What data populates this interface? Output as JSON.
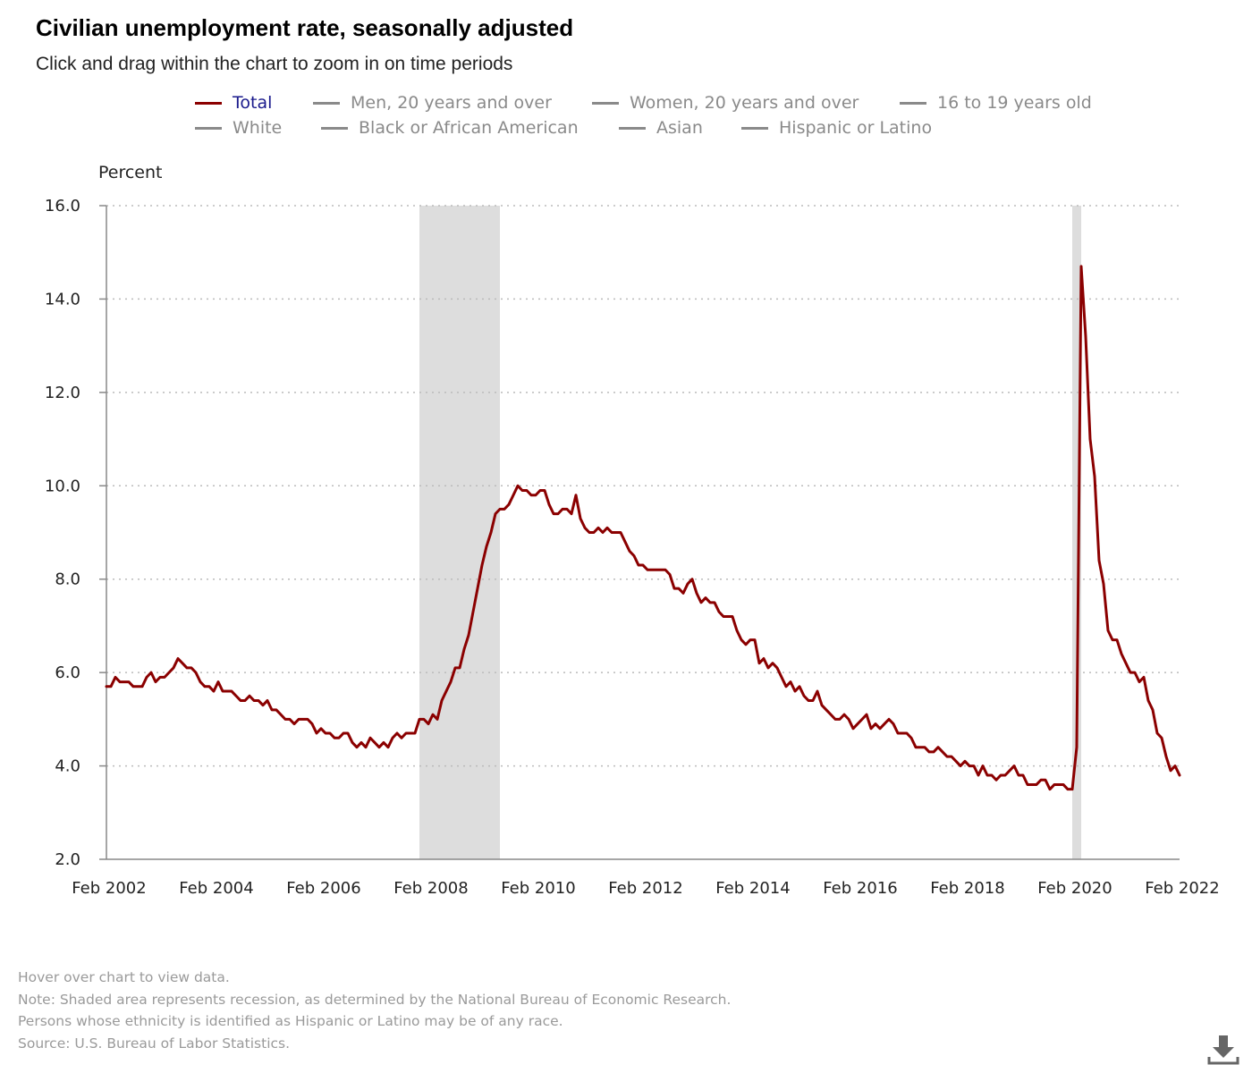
{
  "title": "Civilian unemployment rate, seasonally adjusted",
  "subtitle": "Click and drag within the chart to zoom in on time periods",
  "legend": {
    "items": [
      {
        "label": "Total",
        "active": true
      },
      {
        "label": "Men, 20 years and over",
        "active": false
      },
      {
        "label": "Women, 20 years and over",
        "active": false
      },
      {
        "label": "16 to 19 years old",
        "active": false
      },
      {
        "label": "White",
        "active": false
      },
      {
        "label": "Black or African American",
        "active": false
      },
      {
        "label": "Asian",
        "active": false
      },
      {
        "label": "Hispanic or Latino",
        "active": false
      }
    ]
  },
  "notes": {
    "hover": "Hover over chart to view data.",
    "recession": "Note: Shaded area represents recession, as determined by the National Bureau of Economic Research.",
    "ethnicity": "Persons whose ethnicity is identified as Hispanic or Latino may be of any race.",
    "source": "Source: U.S. Bureau of Labor Statistics."
  },
  "colors": {
    "series_total": "#8b0000",
    "recession_shade": "#dddddd",
    "gridline": "#bbbbbb",
    "legend_active_text": "#1a1a8c",
    "legend_inactive": "#8a8a8a",
    "download_icon": "#666666"
  },
  "download_icon": "download-icon",
  "chart_data": {
    "type": "line",
    "title": "Civilian unemployment rate, seasonally adjusted",
    "ylabel": "Percent",
    "xlabel": "",
    "ylim": [
      2.0,
      16.0
    ],
    "yticks": [
      "2.0",
      "4.0",
      "6.0",
      "8.0",
      "10.0",
      "12.0",
      "14.0",
      "16.0"
    ],
    "xlim": [
      "Feb 2002",
      "Feb 2022"
    ],
    "xticks": [
      "Feb 2002",
      "Feb 2004",
      "Feb 2006",
      "Feb 2008",
      "Feb 2010",
      "Feb 2012",
      "Feb 2014",
      "Feb 2016",
      "Feb 2018",
      "Feb 2020",
      "Feb 2022"
    ],
    "grid": "horizontal dotted",
    "legend_position": "top",
    "recessions": [
      {
        "start": "Dec 2007",
        "end": "Jun 2009"
      },
      {
        "start": "Feb 2020",
        "end": "Apr 2020"
      }
    ],
    "series": [
      {
        "name": "Total",
        "start": "Feb 2002",
        "frequency": "monthly",
        "values": [
          5.7,
          5.7,
          5.9,
          5.8,
          5.8,
          5.8,
          5.7,
          5.7,
          5.7,
          5.9,
          6.0,
          5.8,
          5.9,
          5.9,
          6.0,
          6.1,
          6.3,
          6.2,
          6.1,
          6.1,
          6.0,
          5.8,
          5.7,
          5.7,
          5.6,
          5.8,
          5.6,
          5.6,
          5.6,
          5.5,
          5.4,
          5.4,
          5.5,
          5.4,
          5.4,
          5.3,
          5.4,
          5.2,
          5.2,
          5.1,
          5.0,
          5.0,
          4.9,
          5.0,
          5.0,
          5.0,
          4.9,
          4.7,
          4.8,
          4.7,
          4.7,
          4.6,
          4.6,
          4.7,
          4.7,
          4.5,
          4.4,
          4.5,
          4.4,
          4.6,
          4.5,
          4.4,
          4.5,
          4.4,
          4.6,
          4.7,
          4.6,
          4.7,
          4.7,
          4.7,
          5.0,
          5.0,
          4.9,
          5.1,
          5.0,
          5.4,
          5.6,
          5.8,
          6.1,
          6.1,
          6.5,
          6.8,
          7.3,
          7.8,
          8.3,
          8.7,
          9.0,
          9.4,
          9.5,
          9.5,
          9.6,
          9.8,
          10.0,
          9.9,
          9.9,
          9.8,
          9.8,
          9.9,
          9.9,
          9.6,
          9.4,
          9.4,
          9.5,
          9.5,
          9.4,
          9.8,
          9.3,
          9.1,
          9.0,
          9.0,
          9.1,
          9.0,
          9.1,
          9.0,
          9.0,
          9.0,
          8.8,
          8.6,
          8.5,
          8.3,
          8.3,
          8.2,
          8.2,
          8.2,
          8.2,
          8.2,
          8.1,
          7.8,
          7.8,
          7.7,
          7.9,
          8.0,
          7.7,
          7.5,
          7.6,
          7.5,
          7.5,
          7.3,
          7.2,
          7.2,
          7.2,
          6.9,
          6.7,
          6.6,
          6.7,
          6.7,
          6.2,
          6.3,
          6.1,
          6.2,
          6.1,
          5.9,
          5.7,
          5.8,
          5.6,
          5.7,
          5.5,
          5.4,
          5.4,
          5.6,
          5.3,
          5.2,
          5.1,
          5.0,
          5.0,
          5.1,
          5.0,
          4.8,
          4.9,
          5.0,
          5.1,
          4.8,
          4.9,
          4.8,
          4.9,
          5.0,
          4.9,
          4.7,
          4.7,
          4.7,
          4.6,
          4.4,
          4.4,
          4.4,
          4.3,
          4.3,
          4.4,
          4.3,
          4.2,
          4.2,
          4.1,
          4.0,
          4.1,
          4.0,
          4.0,
          3.8,
          4.0,
          3.8,
          3.8,
          3.7,
          3.8,
          3.8,
          3.9,
          4.0,
          3.8,
          3.8,
          3.6,
          3.6,
          3.6,
          3.7,
          3.7,
          3.5,
          3.6,
          3.6,
          3.6,
          3.5,
          3.5,
          4.4,
          14.7,
          13.2,
          11.0,
          10.2,
          8.4,
          7.9,
          6.9,
          6.7,
          6.7,
          6.4,
          6.2,
          6.0,
          6.0,
          5.8,
          5.9,
          5.4,
          5.2,
          4.7,
          4.6,
          4.2,
          3.9,
          4.0,
          3.8
        ]
      }
    ]
  }
}
